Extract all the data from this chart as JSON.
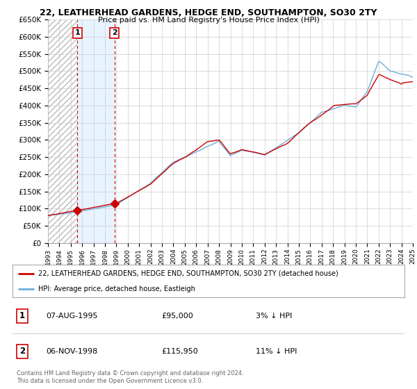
{
  "title_line1": "22, LEATHERHEAD GARDENS, HEDGE END, SOUTHAMPTON, SO30 2TY",
  "title_line2": "Price paid vs. HM Land Registry's House Price Index (HPI)",
  "ylim": [
    0,
    650000
  ],
  "yticks": [
    0,
    50000,
    100000,
    150000,
    200000,
    250000,
    300000,
    350000,
    400000,
    450000,
    500000,
    550000,
    600000,
    650000
  ],
  "ytick_labels": [
    "£0",
    "£50K",
    "£100K",
    "£150K",
    "£200K",
    "£250K",
    "£300K",
    "£350K",
    "£400K",
    "£450K",
    "£500K",
    "£550K",
    "£600K",
    "£650K"
  ],
  "hpi_color": "#6baed6",
  "price_color": "#cc0000",
  "background_color": "#ffffff",
  "grid_color": "#cccccc",
  "sale1_x": 1995.58,
  "sale1_y": 95000,
  "sale2_x": 1998.83,
  "sale2_y": 115950,
  "legend_line1": "22, LEATHERHEAD GARDENS, HEDGE END, SOUTHAMPTON, SO30 2TY (detached house)",
  "legend_line2": "HPI: Average price, detached house, Eastleigh",
  "table_row1_num": "1",
  "table_row1_date": "07-AUG-1995",
  "table_row1_price": "£95,000",
  "table_row1_hpi": "3% ↓ HPI",
  "table_row2_num": "2",
  "table_row2_date": "06-NOV-1998",
  "table_row2_price": "£115,950",
  "table_row2_hpi": "11% ↓ HPI",
  "footer": "Contains HM Land Registry data © Crown copyright and database right 2024.\nThis data is licensed under the Open Government Licence v3.0.",
  "xlim_left": 1993.0,
  "xlim_right": 2025.0
}
